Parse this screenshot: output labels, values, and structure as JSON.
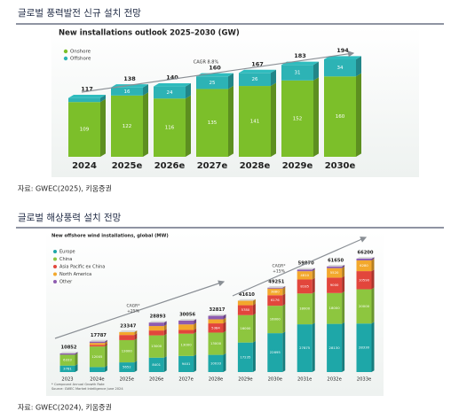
{
  "sections": [
    {
      "heading": "글로벌 풍력발전 신규 설치 전망",
      "source": "자료: GWEC(2025), 키움증권"
    },
    {
      "heading": "글로벌 해상풍력 설치 전망",
      "source": "자료: GWEC(2024), 키움증권"
    }
  ],
  "chart_data": [
    {
      "type": "bar",
      "stacked": true,
      "title": "New installations outlook 2025–2030 (GW)",
      "categories": [
        "2024",
        "2025e",
        "2026e",
        "2027e",
        "2028e",
        "2029e",
        "2030e"
      ],
      "series": [
        {
          "name": "Onshore",
          "color": "#7cbf2a",
          "values": [
            109,
            122,
            116,
            135,
            141,
            152,
            160
          ]
        },
        {
          "name": "Offshore",
          "color": "#2db3b5",
          "values": [
            8,
            16,
            24,
            25,
            26,
            31,
            34
          ]
        }
      ],
      "totals": [
        117,
        138,
        140,
        160,
        167,
        183,
        194
      ],
      "annotations": [
        [
          "CAGR 8.8%"
        ]
      ]
    },
    {
      "type": "bar",
      "stacked": true,
      "title": "New offshore wind installations, global (MW)",
      "categories": [
        "2023",
        "2024e",
        "2025e",
        "2026e",
        "2027e",
        "2028e",
        "2029e",
        "2030e",
        "2031e",
        "2032e",
        "2033e"
      ],
      "series": [
        {
          "name": "Europe",
          "color": "#1ea7a8",
          "values": [
            3781,
            2916,
            5652,
            8401,
            9401,
            10033,
            17235,
            22695,
            27875,
            28130,
            28330
          ]
        },
        {
          "name": "China",
          "color": "#8dc63f",
          "values": [
            6333,
            12005,
            13000,
            13000,
            13000,
            13000,
            16000,
            16000,
            18000,
            18000,
            20000
          ]
        },
        {
          "name": "Asia Pacific ex China",
          "color": "#e2463c",
          "values": [
            0,
            928,
            2983,
            2861,
            2155,
            5384,
            5780,
            6176,
            8185,
            9000,
            10590
          ]
        },
        {
          "name": "North America",
          "color": "#f3a82c",
          "values": [
            0,
            1136,
            1712,
            2600,
            3250,
            2375,
            2595,
            3880,
            4810,
            5520,
            6280
          ]
        },
        {
          "name": "Other",
          "color": "#8e5bb0",
          "values": [
            738,
            802,
            0,
            2031,
            2250,
            2025,
            0,
            500,
            1000,
            1000,
            1000
          ]
        }
      ],
      "totals": [
        10852,
        17787,
        23347,
        28893,
        30056,
        32817,
        41610,
        49251,
        59870,
        61650,
        66200
      ],
      "annotations": [
        [
          "CAGR*",
          "+25%"
        ],
        [
          "CAGR*",
          "+15%"
        ]
      ],
      "footnotes": [
        "* Compound Annual Growth Rate",
        "Source: GWEC Market Intelligence June 2024"
      ]
    }
  ]
}
